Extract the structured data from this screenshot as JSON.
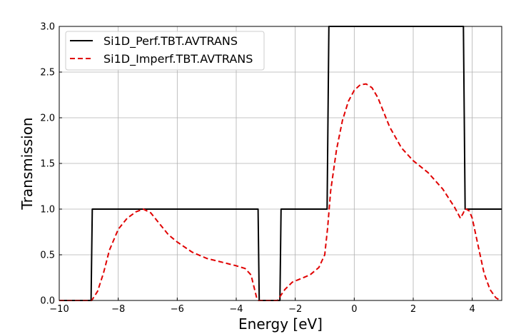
{
  "chart_data": {
    "type": "line",
    "title": "",
    "xlabel": "Energy [eV]",
    "ylabel": "Transmission",
    "xlim": [
      -10,
      5
    ],
    "ylim": [
      0,
      3.0
    ],
    "grid": true,
    "legend_position": "top-left",
    "xticks": [
      -10,
      -8,
      -6,
      -4,
      -2,
      0,
      2,
      4
    ],
    "xtick_labels": [
      "−10",
      "−8",
      "−6",
      "−4",
      "−2",
      "0",
      "2",
      "4"
    ],
    "yticks": [
      0,
      0.5,
      1.0,
      1.5,
      2.0,
      2.5,
      3.0
    ],
    "ytick_labels": [
      "0.0",
      "0.5",
      "1.0",
      "1.5",
      "2.0",
      "2.5",
      "3.0"
    ],
    "series": [
      {
        "name": "Si1D_Perf.TBT.AVTRANS",
        "color": "#000000",
        "style": "solid",
        "x": [
          -10,
          -8.92,
          -8.88,
          -3.26,
          -3.22,
          -2.52,
          -2.48,
          -0.92,
          -0.86,
          3.7,
          3.76,
          5
        ],
        "y": [
          0,
          0,
          1,
          1,
          0,
          0,
          1,
          1,
          3,
          3,
          1,
          1
        ]
      },
      {
        "name": "Si1D_Imperf.TBT.AVTRANS",
        "color": "#e00000",
        "style": "dashed",
        "x": [
          -10,
          -8.9,
          -8.7,
          -8.5,
          -8.3,
          -8.0,
          -7.7,
          -7.4,
          -7.15,
          -6.9,
          -6.6,
          -6.3,
          -6.0,
          -5.5,
          -5.0,
          -4.5,
          -4.0,
          -3.7,
          -3.5,
          -3.4,
          -3.3,
          -3.25,
          -2.6,
          -2.5,
          -2.35,
          -2.1,
          -1.8,
          -1.5,
          -1.2,
          -1.0,
          -0.9,
          -0.8,
          -0.6,
          -0.4,
          -0.2,
          0.0,
          0.2,
          0.4,
          0.6,
          0.8,
          1.2,
          1.6,
          2.0,
          2.5,
          3.0,
          3.4,
          3.6,
          3.7,
          3.75,
          3.8,
          3.9,
          4.0,
          4.2,
          4.4,
          4.6,
          4.8,
          4.95
        ],
        "y": [
          0,
          0,
          0.1,
          0.3,
          0.55,
          0.78,
          0.9,
          0.97,
          1.0,
          0.96,
          0.84,
          0.72,
          0.64,
          0.53,
          0.46,
          0.42,
          0.38,
          0.35,
          0.28,
          0.15,
          0.02,
          0,
          0,
          0.05,
          0.12,
          0.2,
          0.24,
          0.28,
          0.36,
          0.5,
          0.8,
          1.2,
          1.65,
          1.97,
          2.18,
          2.3,
          2.36,
          2.37,
          2.33,
          2.22,
          1.9,
          1.67,
          1.53,
          1.4,
          1.22,
          1.02,
          0.9,
          0.96,
          1.0,
          1.0,
          0.98,
          0.9,
          0.6,
          0.3,
          0.12,
          0.03,
          0.0
        ]
      }
    ]
  }
}
